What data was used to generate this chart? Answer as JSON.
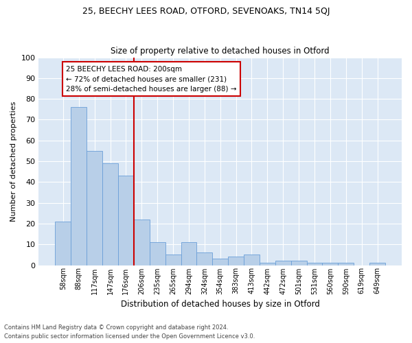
{
  "title_line1": "25, BEECHY LEES ROAD, OTFORD, SEVENOAKS, TN14 5QJ",
  "title_line2": "Size of property relative to detached houses in Otford",
  "xlabel": "Distribution of detached houses by size in Otford",
  "ylabel": "Number of detached properties",
  "categories": [
    "58sqm",
    "88sqm",
    "117sqm",
    "147sqm",
    "176sqm",
    "206sqm",
    "235sqm",
    "265sqm",
    "294sqm",
    "324sqm",
    "354sqm",
    "383sqm",
    "413sqm",
    "442sqm",
    "472sqm",
    "501sqm",
    "531sqm",
    "560sqm",
    "590sqm",
    "619sqm",
    "649sqm"
  ],
  "values": [
    21,
    76,
    55,
    49,
    43,
    22,
    11,
    5,
    11,
    6,
    3,
    4,
    5,
    1,
    2,
    2,
    1,
    1,
    1,
    0,
    1
  ],
  "bar_color": "#b8cfe8",
  "bar_edge_color": "#6a9fd8",
  "vline_color": "#cc0000",
  "annotation_lines": [
    "25 BEECHY LEES ROAD: 200sqm",
    "← 72% of detached houses are smaller (231)",
    "28% of semi-detached houses are larger (88) →"
  ],
  "annotation_box_color": "#cc0000",
  "background_color": "#dce8f5",
  "plot_bg_color": "#dce8f5",
  "ylim": [
    0,
    100
  ],
  "yticks": [
    0,
    10,
    20,
    30,
    40,
    50,
    60,
    70,
    80,
    90,
    100
  ],
  "footer_line1": "Contains HM Land Registry data © Crown copyright and database right 2024.",
  "footer_line2": "Contains public sector information licensed under the Open Government Licence v3.0."
}
